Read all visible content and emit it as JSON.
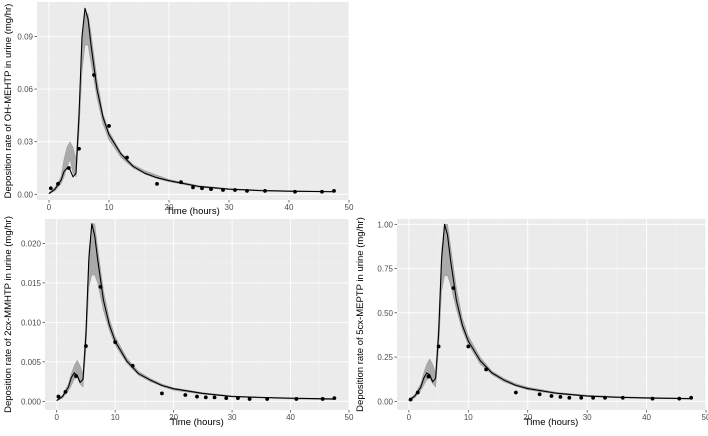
{
  "chart_data": [
    {
      "type": "line",
      "ylabel": "Deposition rate of OH-MEHTP in urine (mg/hr)",
      "xlabel": "Time (hours)",
      "xlim": [
        -2,
        50
      ],
      "ylim": [
        -0.0032,
        0.1096
      ],
      "xticks": [
        0,
        10,
        20,
        30,
        40,
        50
      ],
      "xtick_labels": [
        "0",
        "10",
        "20",
        "30",
        "40",
        "50"
      ],
      "yticks": [
        0.0,
        0.03,
        0.06,
        0.09
      ],
      "ytick_labels": [
        "0.00",
        "0.03",
        "0.06",
        "0.09"
      ],
      "grid": true,
      "series": [
        {
          "kind": "ribbon",
          "x": [
            0,
            1,
            2,
            2.5,
            3,
            3.5,
            4,
            4.5,
            5,
            5.5,
            6,
            6.5,
            7,
            8,
            9,
            10,
            12,
            14,
            16,
            18,
            20,
            25,
            30,
            35,
            40,
            47.5
          ],
          "upper": [
            0.001,
            0.004,
            0.01,
            0.02,
            0.027,
            0.03,
            0.027,
            0.02,
            0.05,
            0.085,
            0.103,
            0.103,
            0.092,
            0.066,
            0.046,
            0.036,
            0.024,
            0.017,
            0.0135,
            0.011,
            0.0085,
            0.005,
            0.0033,
            0.0025,
            0.0021,
            0.0018
          ],
          "lower": [
            0.0002,
            0.002,
            0.006,
            0.01,
            0.015,
            0.02,
            0.012,
            0.01,
            0.035,
            0.07,
            0.085,
            0.085,
            0.075,
            0.055,
            0.04,
            0.031,
            0.021,
            0.015,
            0.0115,
            0.009,
            0.0072,
            0.004,
            0.0026,
            0.002,
            0.0016,
            0.0014
          ]
        },
        {
          "kind": "line",
          "x": [
            0,
            1,
            2,
            2.5,
            3,
            3.5,
            4,
            4.5,
            5,
            5.5,
            6,
            6.5,
            7,
            8,
            9,
            10,
            12,
            14,
            16,
            18,
            20,
            25,
            30,
            35,
            40,
            47.5
          ],
          "y": [
            0.0005,
            0.003,
            0.008,
            0.013,
            0.015,
            0.014,
            0.01,
            0.012,
            0.045,
            0.09,
            0.106,
            0.1,
            0.085,
            0.06,
            0.044,
            0.034,
            0.023,
            0.016,
            0.012,
            0.0095,
            0.0078,
            0.0045,
            0.003,
            0.0022,
            0.0018,
            0.0015
          ]
        },
        {
          "kind": "points",
          "x": [
            0.3,
            1.5,
            3.3,
            5,
            7.5,
            10,
            13,
            18,
            22,
            24,
            25.5,
            27,
            29,
            31,
            33,
            36,
            41,
            45.5,
            47.5
          ],
          "y": [
            0.0035,
            0.006,
            0.015,
            0.026,
            0.068,
            0.039,
            0.021,
            0.006,
            0.007,
            0.004,
            0.0035,
            0.003,
            0.0025,
            0.0025,
            0.002,
            0.002,
            0.0015,
            0.0015,
            0.002
          ]
        }
      ]
    },
    {
      "type": "line",
      "ylabel": "Deposition rate of 2cx-MMHTP in urine (mg/hr)",
      "xlabel": "Time (hours)",
      "xlim": [
        -2,
        50
      ],
      "ylim": [
        -0.0011,
        0.0231
      ],
      "xticks": [
        0,
        10,
        20,
        30,
        40,
        50
      ],
      "xtick_labels": [
        "0",
        "10",
        "20",
        "30",
        "40",
        "50"
      ],
      "yticks": [
        0.0,
        0.005,
        0.01,
        0.015,
        0.02
      ],
      "ytick_labels": [
        "0.000",
        "0.005",
        "0.010",
        "0.015",
        "0.020"
      ],
      "grid": true,
      "series": [
        {
          "kind": "ribbon",
          "x": [
            0,
            1,
            2,
            2.5,
            3,
            3.5,
            4,
            4.5,
            5,
            5.5,
            6,
            6.5,
            7,
            8,
            9,
            10,
            12,
            14,
            16,
            18,
            20,
            25,
            30,
            35,
            40,
            47.5
          ],
          "upper": [
            0.0002,
            0.0008,
            0.0022,
            0.0035,
            0.0045,
            0.0052,
            0.0045,
            0.0035,
            0.0095,
            0.019,
            0.0225,
            0.0225,
            0.0195,
            0.014,
            0.0105,
            0.0082,
            0.0055,
            0.0038,
            0.0029,
            0.0022,
            0.0017,
            0.0011,
            0.0007,
            0.0005,
            0.0004,
            0.0003
          ],
          "lower": [
            5e-05,
            0.0004,
            0.0013,
            0.002,
            0.0028,
            0.003,
            0.0022,
            0.0018,
            0.0065,
            0.0145,
            0.016,
            0.016,
            0.015,
            0.0115,
            0.009,
            0.0071,
            0.0048,
            0.0033,
            0.0025,
            0.0019,
            0.0014,
            0.0009,
            0.0006,
            0.0004,
            0.0003,
            0.0002
          ]
        },
        {
          "kind": "line",
          "x": [
            0,
            1,
            2,
            2.5,
            3,
            3.5,
            4,
            4.5,
            5,
            5.5,
            6,
            6.5,
            7,
            8,
            9,
            10,
            12,
            14,
            16,
            18,
            20,
            25,
            30,
            35,
            40,
            47.5
          ],
          "y": [
            0.0001,
            0.0006,
            0.0018,
            0.003,
            0.0036,
            0.0033,
            0.0024,
            0.0028,
            0.0085,
            0.018,
            0.0225,
            0.021,
            0.018,
            0.0128,
            0.0097,
            0.0076,
            0.0051,
            0.0035,
            0.0027,
            0.002,
            0.0016,
            0.001,
            0.0006,
            0.0005,
            0.0004,
            0.0003
          ]
        },
        {
          "kind": "points",
          "x": [
            0.3,
            1.5,
            3.3,
            5,
            7.5,
            10,
            13,
            18,
            22,
            24,
            25.5,
            27,
            29,
            31,
            33,
            36,
            41,
            45.5,
            47.5
          ],
          "y": [
            0.0006,
            0.0012,
            0.0032,
            0.007,
            0.0145,
            0.0075,
            0.0045,
            0.001,
            0.0008,
            0.0006,
            0.0005,
            0.0005,
            0.0004,
            0.0004,
            0.0003,
            0.0003,
            0.0003,
            0.0003,
            0.0004
          ]
        }
      ]
    },
    {
      "type": "line",
      "ylabel": "Deposition rate of 5cx-MEPTP in urine (mg/hr)",
      "xlabel": "Time (hours)",
      "xlim": [
        -2,
        50
      ],
      "ylim": [
        -0.049,
        1.03
      ],
      "xticks": [
        0,
        10,
        20,
        30,
        40,
        50
      ],
      "xtick_labels": [
        "0",
        "10",
        "20",
        "30",
        "40",
        "50"
      ],
      "yticks": [
        0.0,
        0.25,
        0.5,
        0.75,
        1.0
      ],
      "ytick_labels": [
        "0.00",
        "0.25",
        "0.50",
        "0.75",
        "1.00"
      ],
      "grid": true,
      "series": [
        {
          "kind": "ribbon",
          "x": [
            0,
            1,
            2,
            2.5,
            3,
            3.5,
            4,
            4.5,
            5,
            5.5,
            6,
            6.5,
            7,
            8,
            9,
            10,
            12,
            14,
            16,
            18,
            20,
            25,
            30,
            35,
            40,
            47.5
          ],
          "upper": [
            0.01,
            0.04,
            0.1,
            0.16,
            0.21,
            0.24,
            0.21,
            0.16,
            0.45,
            0.85,
            1.0,
            1.0,
            0.88,
            0.64,
            0.47,
            0.37,
            0.25,
            0.17,
            0.13,
            0.1,
            0.08,
            0.05,
            0.035,
            0.027,
            0.022,
            0.018
          ],
          "lower": [
            0.002,
            0.02,
            0.06,
            0.09,
            0.12,
            0.13,
            0.1,
            0.08,
            0.3,
            0.62,
            0.71,
            0.71,
            0.66,
            0.52,
            0.4,
            0.32,
            0.21,
            0.15,
            0.11,
            0.085,
            0.065,
            0.04,
            0.027,
            0.02,
            0.016,
            0.013
          ]
        },
        {
          "kind": "line",
          "x": [
            0,
            1,
            2,
            2.5,
            3,
            3.5,
            4,
            4.5,
            5,
            5.5,
            6,
            6.5,
            7,
            8,
            9,
            10,
            12,
            14,
            16,
            18,
            20,
            25,
            30,
            35,
            40,
            47.5
          ],
          "y": [
            0.005,
            0.03,
            0.08,
            0.13,
            0.16,
            0.15,
            0.11,
            0.13,
            0.38,
            0.8,
            1.0,
            0.94,
            0.8,
            0.57,
            0.43,
            0.34,
            0.23,
            0.16,
            0.12,
            0.09,
            0.072,
            0.045,
            0.03,
            0.023,
            0.019,
            0.015
          ]
        },
        {
          "kind": "points",
          "x": [
            0.3,
            1.5,
            3.3,
            5,
            7.5,
            10,
            13,
            18,
            22,
            24,
            25.5,
            27,
            29,
            31,
            33,
            36,
            41,
            45.5,
            47.5
          ],
          "y": [
            0.01,
            0.05,
            0.14,
            0.31,
            0.64,
            0.31,
            0.18,
            0.05,
            0.04,
            0.03,
            0.025,
            0.02,
            0.02,
            0.02,
            0.02,
            0.02,
            0.015,
            0.015,
            0.02
          ]
        }
      ]
    }
  ]
}
